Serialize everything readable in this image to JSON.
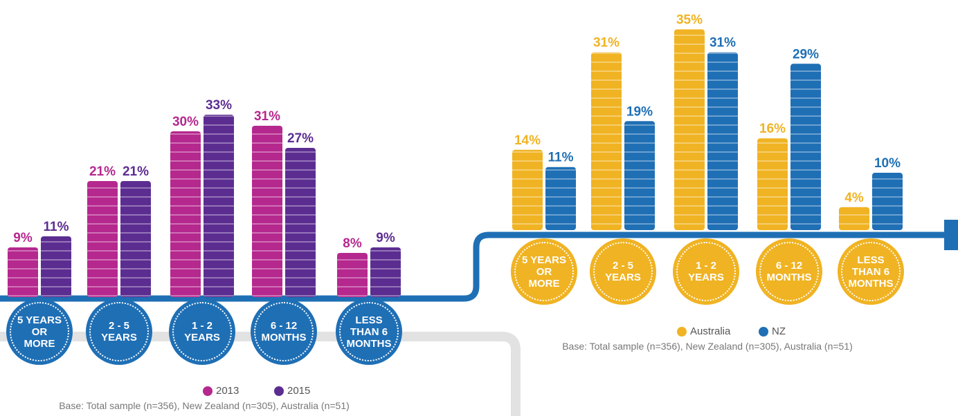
{
  "chart_data": [
    {
      "type": "bar",
      "categories": [
        "5 YEARS OR MORE",
        "2 - 5 YEARS",
        "1 - 2 YEARS",
        "6 - 12 MONTHS",
        "LESS THAN 6 MONTHS"
      ],
      "series": [
        {
          "name": "2013",
          "color": "#b5288e",
          "values": [
            9,
            21,
            30,
            31,
            8
          ],
          "value_labels": [
            "9%",
            "21%",
            "30%",
            "31%",
            "8%"
          ]
        },
        {
          "name": "2015",
          "color": "#5c2d91",
          "values": [
            11,
            21,
            33,
            27,
            9
          ],
          "value_labels": [
            "11%",
            "21%",
            "33%",
            "27%",
            "9%"
          ]
        }
      ],
      "note": "Base: Total sample (n=356), New Zealand (n=305), Australia (n=51)"
    },
    {
      "type": "bar",
      "categories": [
        "5 YEARS OR MORE",
        "2 - 5 YEARS",
        "1 - 2 YEARS",
        "6 - 12 MONTHS",
        "LESS THAN 6 MONTHS"
      ],
      "series": [
        {
          "name": "Australia",
          "color": "#f0b323",
          "values": [
            14,
            31,
            35,
            16,
            4
          ],
          "value_labels": [
            "14%",
            "31%",
            "35%",
            "16%",
            "4%"
          ]
        },
        {
          "name": "NZ",
          "color": "#1f6fb5",
          "values": [
            11,
            19,
            31,
            29,
            10
          ],
          "value_labels": [
            "11%",
            "19%",
            "31%",
            "29%",
            "10%"
          ]
        }
      ],
      "note": "Base: Total sample (n=356), New Zealand (n=305), Australia (n=51)"
    }
  ]
}
